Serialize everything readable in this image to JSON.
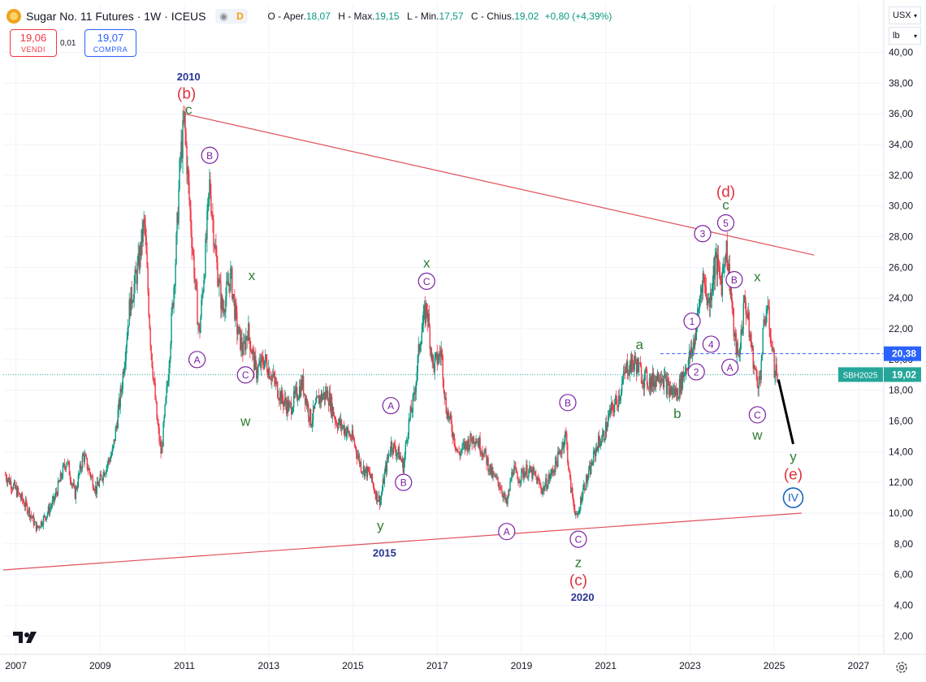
{
  "header": {
    "title": "Sugar No. 11 Futures · 1W · ICEUS",
    "d_badge": "D",
    "o_label": "O - Aper.",
    "o_value": "18,07",
    "h_label": "H - Max.",
    "h_value": "19,15",
    "l_label": "L - Min.",
    "l_value": "17,57",
    "c_label": "C - Chius.",
    "c_value": "19,02",
    "change": "+0,80 (+4,39%)"
  },
  "trade": {
    "sell_price": "19,06",
    "sell_label": "VENDI",
    "spread": "0,01",
    "buy_price": "19,07",
    "buy_label": "COMPRA"
  },
  "controls": {
    "currency": "USX",
    "unit": "lb"
  },
  "colors": {
    "up": "#089981",
    "down": "#f23645",
    "trendline": "#e0505a",
    "wave_red": "#e0303c",
    "wave_green": "#2e7d32",
    "wave_purple": "#7b1fa2",
    "wave_blue": "#1565c0",
    "year_blue": "#283593",
    "price_badge": "#26a69a"
  },
  "chart_data": {
    "type": "candlestick",
    "symbol": "SBH2025",
    "x_range": [
      2006.7,
      2027.6
    ],
    "y_range": [
      0.8,
      43.2
    ],
    "x_ticks": [
      {
        "label": "2007",
        "x": 2007
      },
      {
        "label": "2009",
        "x": 2009
      },
      {
        "label": "2011",
        "x": 2011
      },
      {
        "label": "2013",
        "x": 2013
      },
      {
        "label": "2015",
        "x": 2015
      },
      {
        "label": "2017",
        "x": 2017
      },
      {
        "label": "2019",
        "x": 2019
      },
      {
        "label": "2021",
        "x": 2021
      },
      {
        "label": "2023",
        "x": 2023
      },
      {
        "label": "2025",
        "x": 2025
      },
      {
        "label": "2027",
        "x": 2027
      }
    ],
    "y_ticks": [
      "2,00",
      "4,00",
      "6,00",
      "8,00",
      "10,00",
      "12,00",
      "14,00",
      "16,00",
      "18,00",
      "20,00",
      "22,00",
      "24,00",
      "26,00",
      "28,00",
      "30,00",
      "32,00",
      "34,00",
      "36,00",
      "38,00",
      "40,00"
    ],
    "y_tick_values": [
      2,
      4,
      6,
      8,
      10,
      12,
      14,
      16,
      18,
      20,
      22,
      24,
      26,
      28,
      30,
      32,
      34,
      36,
      38,
      40
    ],
    "price_path": [
      [
        2006.75,
        12.5
      ],
      [
        2007.0,
        11.5
      ],
      [
        2007.3,
        10.2
      ],
      [
        2007.5,
        9.0
      ],
      [
        2007.7,
        9.8
      ],
      [
        2007.9,
        10.8
      ],
      [
        2008.2,
        13.5
      ],
      [
        2008.4,
        11.2
      ],
      [
        2008.6,
        13.8
      ],
      [
        2008.9,
        11.5
      ],
      [
        2009.1,
        12.8
      ],
      [
        2009.3,
        14.0
      ],
      [
        2009.5,
        18.0
      ],
      [
        2009.7,
        23.5
      ],
      [
        2009.9,
        26.0
      ],
      [
        2010.05,
        29.0
      ],
      [
        2010.2,
        21.0
      ],
      [
        2010.35,
        16.0
      ],
      [
        2010.45,
        13.8
      ],
      [
        2010.6,
        18.5
      ],
      [
        2010.8,
        27.0
      ],
      [
        2010.9,
        33.0
      ],
      [
        2011.0,
        35.5
      ],
      [
        2011.1,
        31.0
      ],
      [
        2011.2,
        27.0
      ],
      [
        2011.35,
        21.5
      ],
      [
        2011.5,
        27.0
      ],
      [
        2011.6,
        31.5
      ],
      [
        2011.75,
        26.5
      ],
      [
        2011.9,
        23.2
      ],
      [
        2012.1,
        25.5
      ],
      [
        2012.25,
        22.0
      ],
      [
        2012.4,
        20.5
      ],
      [
        2012.5,
        22.0
      ],
      [
        2012.7,
        19.2
      ],
      [
        2012.9,
        20.0
      ],
      [
        2013.1,
        18.8
      ],
      [
        2013.3,
        17.5
      ],
      [
        2013.5,
        16.8
      ],
      [
        2013.8,
        18.5
      ],
      [
        2014.0,
        16.0
      ],
      [
        2014.2,
        17.5
      ],
      [
        2014.4,
        17.8
      ],
      [
        2014.6,
        16.0
      ],
      [
        2014.8,
        15.5
      ],
      [
        2015.0,
        14.8
      ],
      [
        2015.2,
        13.0
      ],
      [
        2015.4,
        12.5
      ],
      [
        2015.55,
        11.2
      ],
      [
        2015.65,
        10.8
      ],
      [
        2015.75,
        12.5
      ],
      [
        2015.9,
        14.5
      ],
      [
        2016.1,
        13.8
      ],
      [
        2016.2,
        13.0
      ],
      [
        2016.3,
        15.5
      ],
      [
        2016.45,
        17.5
      ],
      [
        2016.6,
        21.5
      ],
      [
        2016.75,
        23.5
      ],
      [
        2016.9,
        19.5
      ],
      [
        2017.1,
        20.5
      ],
      [
        2017.2,
        17.0
      ],
      [
        2017.35,
        15.5
      ],
      [
        2017.5,
        13.8
      ],
      [
        2017.7,
        14.5
      ],
      [
        2017.9,
        15.0
      ],
      [
        2018.1,
        14.0
      ],
      [
        2018.3,
        12.5
      ],
      [
        2018.5,
        11.8
      ],
      [
        2018.65,
        10.5
      ],
      [
        2018.8,
        13.0
      ],
      [
        2018.9,
        12.2
      ],
      [
        2019.1,
        12.8
      ],
      [
        2019.3,
        12.5
      ],
      [
        2019.5,
        11.5
      ],
      [
        2019.7,
        12.5
      ],
      [
        2019.9,
        13.8
      ],
      [
        2020.05,
        15.2
      ],
      [
        2020.15,
        12.0
      ],
      [
        2020.25,
        10.5
      ],
      [
        2020.32,
        9.5
      ],
      [
        2020.45,
        11.5
      ],
      [
        2020.6,
        12.5
      ],
      [
        2020.8,
        14.5
      ],
      [
        2020.95,
        15.0
      ],
      [
        2021.1,
        16.5
      ],
      [
        2021.3,
        17.5
      ],
      [
        2021.5,
        19.5
      ],
      [
        2021.7,
        19.8
      ],
      [
        2021.9,
        18.8
      ],
      [
        2022.1,
        18.5
      ],
      [
        2022.3,
        19.2
      ],
      [
        2022.5,
        18.0
      ],
      [
        2022.7,
        17.8
      ],
      [
        2022.9,
        19.5
      ],
      [
        2023.05,
        20.5
      ],
      [
        2023.15,
        22.0
      ],
      [
        2023.3,
        25.5
      ],
      [
        2023.45,
        23.5
      ],
      [
        2023.6,
        26.5
      ],
      [
        2023.75,
        25.0
      ],
      [
        2023.85,
        27.5
      ],
      [
        2023.95,
        25.0
      ],
      [
        2024.05,
        21.5
      ],
      [
        2024.15,
        20.0
      ],
      [
        2024.3,
        24.0
      ],
      [
        2024.45,
        21.0
      ],
      [
        2024.55,
        19.0
      ],
      [
        2024.65,
        18.5
      ],
      [
        2024.75,
        22.0
      ],
      [
        2024.82,
        23.5
      ],
      [
        2024.9,
        22.0
      ],
      [
        2025.0,
        19.5
      ],
      [
        2025.08,
        19.02
      ]
    ],
    "trendlines": [
      {
        "from": [
          2011.0,
          36.0
        ],
        "to": [
          2025.95,
          26.8
        ]
      },
      {
        "from": [
          2006.7,
          6.3
        ],
        "to": [
          2025.65,
          10.0
        ]
      }
    ],
    "projection": {
      "from": [
        2025.1,
        18.7
      ],
      "to": [
        2025.45,
        14.5
      ]
    },
    "hline": {
      "y": 20.38,
      "x_start": 2022.3,
      "label": "20,38"
    },
    "last_price": {
      "y": 19.02,
      "label": "19,02",
      "symbol": "SBH2025"
    },
    "annotations": [
      {
        "text": "2010",
        "x": 2011.1,
        "y": 38.5,
        "kind": "year"
      },
      {
        "text": "(b)",
        "x": 2011.05,
        "y": 37.3,
        "kind": "red"
      },
      {
        "text": "c",
        "x": 2011.1,
        "y": 36.3,
        "kind": "green"
      },
      {
        "text": "B",
        "x": 2011.6,
        "y": 33.3,
        "kind": "circle-purple"
      },
      {
        "text": "A",
        "x": 2011.3,
        "y": 20.0,
        "kind": "circle-purple"
      },
      {
        "text": "x",
        "x": 2012.6,
        "y": 25.5,
        "kind": "green"
      },
      {
        "text": "C",
        "x": 2012.45,
        "y": 19.0,
        "kind": "circle-purple"
      },
      {
        "text": "w",
        "x": 2012.45,
        "y": 16.0,
        "kind": "green"
      },
      {
        "text": "A",
        "x": 2015.9,
        "y": 17.0,
        "kind": "circle-purple"
      },
      {
        "text": "B",
        "x": 2016.2,
        "y": 12.0,
        "kind": "circle-purple"
      },
      {
        "text": "y",
        "x": 2015.65,
        "y": 9.2,
        "kind": "green"
      },
      {
        "text": "2015",
        "x": 2015.75,
        "y": 7.5,
        "kind": "year"
      },
      {
        "text": "x",
        "x": 2016.75,
        "y": 26.3,
        "kind": "green"
      },
      {
        "text": "C",
        "x": 2016.75,
        "y": 25.1,
        "kind": "circle-purple"
      },
      {
        "text": "A",
        "x": 2018.65,
        "y": 8.8,
        "kind": "circle-purple"
      },
      {
        "text": "B",
        "x": 2020.1,
        "y": 17.2,
        "kind": "circle-purple"
      },
      {
        "text": "C",
        "x": 2020.35,
        "y": 8.3,
        "kind": "circle-purple"
      },
      {
        "text": "z",
        "x": 2020.35,
        "y": 6.8,
        "kind": "green"
      },
      {
        "text": "(c)",
        "x": 2020.35,
        "y": 5.6,
        "kind": "red"
      },
      {
        "text": "2020",
        "x": 2020.45,
        "y": 4.6,
        "kind": "year"
      },
      {
        "text": "a",
        "x": 2021.8,
        "y": 21.0,
        "kind": "green"
      },
      {
        "text": "b",
        "x": 2022.7,
        "y": 16.5,
        "kind": "green"
      },
      {
        "text": "1",
        "x": 2023.05,
        "y": 22.5,
        "kind": "circle-purple"
      },
      {
        "text": "2",
        "x": 2023.15,
        "y": 19.2,
        "kind": "circle-purple"
      },
      {
        "text": "3",
        "x": 2023.3,
        "y": 28.2,
        "kind": "circle-purple"
      },
      {
        "text": "4",
        "x": 2023.5,
        "y": 21.0,
        "kind": "circle-purple"
      },
      {
        "text": "5",
        "x": 2023.85,
        "y": 28.9,
        "kind": "circle-purple"
      },
      {
        "text": "(d)",
        "x": 2023.85,
        "y": 30.9,
        "kind": "red"
      },
      {
        "text": "c",
        "x": 2023.85,
        "y": 30.1,
        "kind": "green"
      },
      {
        "text": "B",
        "x": 2024.05,
        "y": 25.2,
        "kind": "circle-purple"
      },
      {
        "text": "A",
        "x": 2023.95,
        "y": 19.5,
        "kind": "circle-purple"
      },
      {
        "text": "x",
        "x": 2024.6,
        "y": 25.4,
        "kind": "green"
      },
      {
        "text": "C",
        "x": 2024.6,
        "y": 16.4,
        "kind": "circle-purple"
      },
      {
        "text": "w",
        "x": 2024.6,
        "y": 15.1,
        "kind": "green"
      },
      {
        "text": "y",
        "x": 2025.45,
        "y": 13.7,
        "kind": "green"
      },
      {
        "text": "(e)",
        "x": 2025.45,
        "y": 12.5,
        "kind": "red"
      },
      {
        "text": "IV",
        "x": 2025.45,
        "y": 11.0,
        "kind": "circle-blue"
      }
    ]
  }
}
